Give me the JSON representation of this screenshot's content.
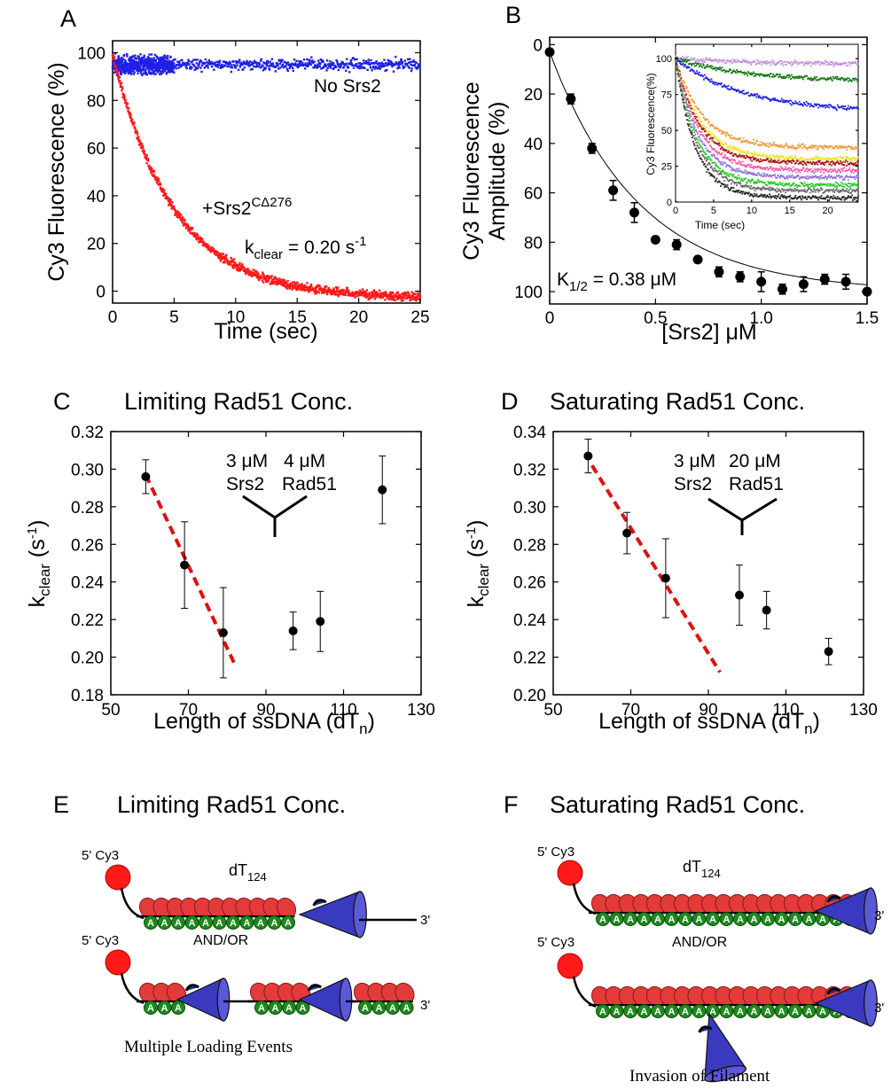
{
  "figure": {
    "panels": {
      "A": {
        "letter": "A"
      },
      "B": {
        "letter": "B"
      },
      "C": {
        "letter": "C",
        "title": "Limiting Rad51 Conc."
      },
      "D": {
        "letter": "D",
        "title": "Saturating Rad51 Conc."
      },
      "E": {
        "letter": "E",
        "title": "Limiting Rad51 Conc."
      },
      "F": {
        "letter": "F",
        "title": "Saturating Rad51 Conc."
      }
    },
    "panel_A": {
      "no_srs2": "No Srs2",
      "srs2_prefix": "+Srs2",
      "srs2_sup": "CΔ276",
      "kclear_k": "k",
      "kclear_sub": "clear",
      "kclear_value": " = 0.20 s",
      "kclear_unit_sup": "-1"
    },
    "panel_B": {
      "k_half_k": "K",
      "k_half_sub": "1/2",
      "k_half_value": " = 0.38 μM",
      "inset_ylabel": "Cy3 Fluorescence(%)",
      "inset_xlabel": "Time (sec)"
    },
    "panel_C": {
      "srs2_conc": "3 μM",
      "srs2": "Srs2",
      "rad51_conc": "4 μM",
      "rad51": "Rad51"
    },
    "panel_D": {
      "srs2_conc": "3 μM",
      "srs2": "Srs2",
      "rad51_conc": "20 μM",
      "rad51": "Rad51"
    },
    "panel_E": {
      "cy3": "5' Cy3",
      "cy3_2": "5' Cy3",
      "dt": "dT",
      "dt_sub": "124",
      "end3": "3'",
      "end3_2": "3'",
      "andor": "AND/OR",
      "caption": "Multiple Loading Events",
      "bead": "A"
    },
    "panel_F": {
      "cy3": "5' Cy3",
      "cy3_2": "5' Cy3",
      "dt": "dT",
      "dt_sub": "124",
      "end3": "3'",
      "end3_2": "3'",
      "andor": "AND/OR",
      "caption": "Invasion of Filament"
    },
    "colors": {
      "red": "#ff1a1a",
      "blue": "#1f1fe6",
      "dashed": "#dd1111",
      "bead_red": "#e33a3a",
      "bead_green": "#1c8a1c",
      "cone_blue": "#2a2a9a"
    }
  },
  "chart_data": [
    {
      "panel": "A",
      "type": "scatter",
      "xlabel": "Time (sec)",
      "ylabel": "Cy3 Fluorescence (%)",
      "xlim": [
        0,
        25
      ],
      "ylim": [
        -5,
        105
      ],
      "xticks": [
        "0",
        "5",
        "10",
        "15",
        "20",
        "25"
      ],
      "yticks": [
        "0",
        "20",
        "40",
        "60",
        "80",
        "100"
      ],
      "series": [
        {
          "name": "No Srs2",
          "color": "#1f1fe6",
          "model": "constant",
          "level": 95,
          "noise": 2.0
        },
        {
          "name": "+Srs2CΔ276",
          "color": "#ff1a1a",
          "model": "exp_decay",
          "y0": 99,
          "y_end": -3,
          "k": 0.2,
          "noise": 1.5
        }
      ]
    },
    {
      "panel": "B",
      "type": "scatter",
      "xlabel": "[Srs2] μM",
      "ylabel": "Cy3 Fluorescence Amplitude (%)",
      "xlim": [
        0,
        1.5
      ],
      "ylim": [
        105,
        -3
      ],
      "y_inverted": true,
      "xticks": [
        "0",
        "0.5",
        "1.0",
        "1.5"
      ],
      "yticks": [
        "0",
        "20",
        "40",
        "60",
        "80",
        "100"
      ],
      "points": [
        {
          "x": 0.0,
          "y": 3,
          "err": 1
        },
        {
          "x": 0.1,
          "y": 22,
          "err": 2
        },
        {
          "x": 0.2,
          "y": 42,
          "err": 2
        },
        {
          "x": 0.3,
          "y": 59,
          "err": 4
        },
        {
          "x": 0.4,
          "y": 68,
          "err": 4
        },
        {
          "x": 0.5,
          "y": 79,
          "err": 1
        },
        {
          "x": 0.6,
          "y": 81,
          "err": 2
        },
        {
          "x": 0.7,
          "y": 87,
          "err": 1
        },
        {
          "x": 0.8,
          "y": 92,
          "err": 2
        },
        {
          "x": 0.9,
          "y": 94,
          "err": 2
        },
        {
          "x": 1.0,
          "y": 96,
          "err": 4
        },
        {
          "x": 1.1,
          "y": 99,
          "err": 2
        },
        {
          "x": 1.2,
          "y": 97,
          "err": 3
        },
        {
          "x": 1.3,
          "y": 95,
          "err": 2
        },
        {
          "x": 1.4,
          "y": 96,
          "err": 3
        },
        {
          "x": 1.5,
          "y": 100,
          "err": 1
        }
      ],
      "fit": {
        "model": "hyperbola",
        "K": 0.38,
        "ymax": 137
      }
    },
    {
      "panel": "B-inset",
      "type": "line",
      "xlabel": "Time (sec)",
      "ylabel": "Cy3 Fluorescence(%)",
      "xlim": [
        0,
        24
      ],
      "ylim": [
        0,
        110
      ],
      "xticks": [
        "0",
        "5",
        "10",
        "15",
        "20"
      ],
      "yticks": [
        "0",
        "25",
        "50",
        "75",
        "100"
      ],
      "series": [
        {
          "color": "#c48ee0",
          "end": 96
        },
        {
          "color": "#117711",
          "end": 84
        },
        {
          "color": "#1f1fe6",
          "end": 63
        },
        {
          "color": "#f59a3a",
          "end": 38
        },
        {
          "color": "#f0e020",
          "end": 30
        },
        {
          "color": "#aa1111",
          "end": 27
        },
        {
          "color": "#ff55aa",
          "end": 22
        },
        {
          "color": "#9370db",
          "end": 17
        },
        {
          "color": "#22cc22",
          "end": 12
        },
        {
          "color": "#666666",
          "end": 8
        },
        {
          "color": "#222222",
          "end": 3
        }
      ]
    },
    {
      "panel": "C",
      "type": "scatter",
      "xlabel": "Length of ssDNA (dTn)",
      "ylabel": "kclear (s-1)",
      "xlim": [
        50,
        130
      ],
      "ylim": [
        0.18,
        0.32
      ],
      "xticks": [
        "50",
        "70",
        "90",
        "110",
        "130"
      ],
      "yticks": [
        "0.18",
        "0.20",
        "0.22",
        "0.24",
        "0.26",
        "0.28",
        "0.30",
        "0.32"
      ],
      "points": [
        {
          "x": 59,
          "y": 0.296,
          "err": 0.009
        },
        {
          "x": 69,
          "y": 0.249,
          "err": 0.023
        },
        {
          "x": 79,
          "y": 0.213,
          "err": 0.024
        },
        {
          "x": 97,
          "y": 0.214,
          "err": 0.01
        },
        {
          "x": 104,
          "y": 0.219,
          "err": 0.016
        },
        {
          "x": 120,
          "y": 0.289,
          "err": 0.018
        }
      ],
      "trend": {
        "x1": 59,
        "y1": 0.297,
        "x2": 82,
        "y2": 0.196
      }
    },
    {
      "panel": "D",
      "type": "scatter",
      "xlabel": "Length of ssDNA (dTn)",
      "ylabel": "kclear (s-1)",
      "xlim": [
        50,
        130
      ],
      "ylim": [
        0.2,
        0.34
      ],
      "xticks": [
        "50",
        "70",
        "90",
        "110",
        "130"
      ],
      "yticks": [
        "0.20",
        "0.22",
        "0.24",
        "0.26",
        "0.28",
        "0.30",
        "0.32",
        "0.34"
      ],
      "points": [
        {
          "x": 59,
          "y": 0.327,
          "err": 0.009
        },
        {
          "x": 69,
          "y": 0.286,
          "err": 0.011
        },
        {
          "x": 79,
          "y": 0.262,
          "err": 0.021
        },
        {
          "x": 98,
          "y": 0.253,
          "err": 0.016
        },
        {
          "x": 105,
          "y": 0.245,
          "err": 0.01
        },
        {
          "x": 121,
          "y": 0.223,
          "err": 0.007
        }
      ],
      "trend": {
        "x1": 60,
        "y1": 0.322,
        "x2": 93,
        "y2": 0.212
      }
    }
  ]
}
